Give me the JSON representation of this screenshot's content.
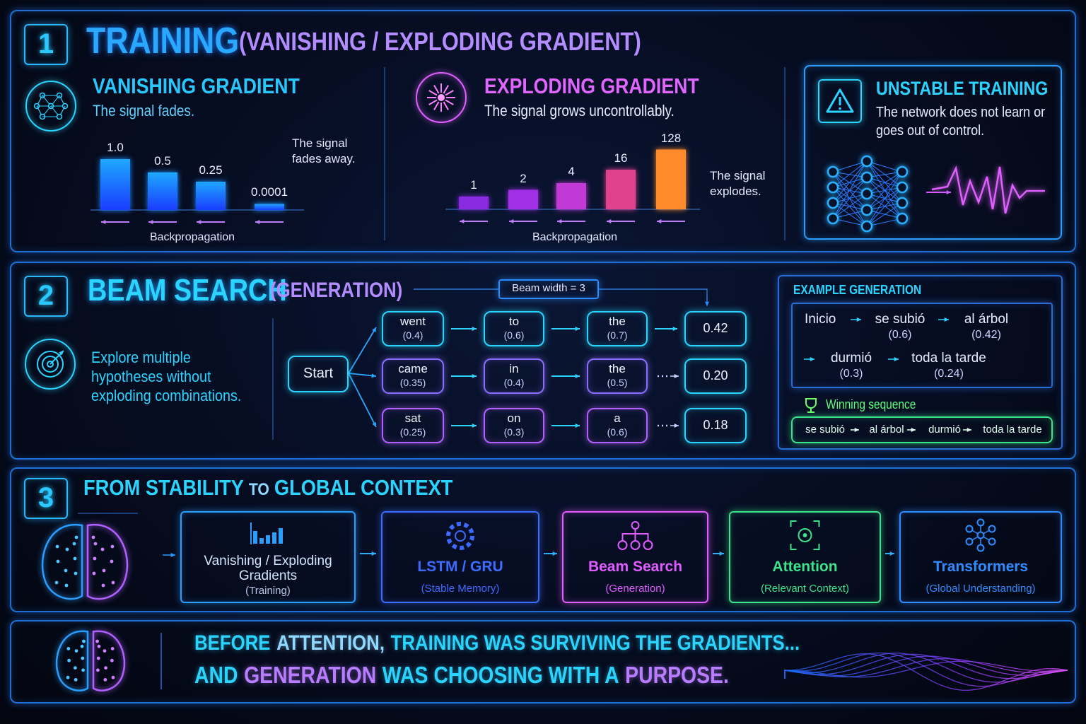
{
  "section1": {
    "number": "1",
    "title": "TRAINING",
    "subtitle": "(VANISHING / EXPLODING GRADIENT)",
    "vanishing": {
      "title": "VANISHING GRADIENT",
      "subtitle": "The signal fades.",
      "note": "The signal fades away.",
      "axis_label": "Backpropagation",
      "chart": {
        "type": "bar",
        "scale": "sqrt",
        "color": "#1e8fff",
        "values": [
          1,
          0.5,
          0.25,
          0.0001
        ],
        "value_labels": [
          "1.0",
          "0.5",
          "0.25",
          "0.0001"
        ]
      }
    },
    "exploding": {
      "title": "EXPLODING GRADIENT",
      "subtitle": "The signal grows uncontrollably.",
      "note": "The signal explodes.",
      "axis_label": "Backpropagation",
      "chart": {
        "type": "bar",
        "scale": "log2",
        "colors": [
          "#8a2be2",
          "#a12fe6",
          "#c13ad8",
          "#e0428f",
          "#ff8a2a"
        ],
        "values": [
          1,
          2,
          4,
          16,
          128
        ]
      }
    },
    "unstable": {
      "title": "UNSTABLE TRAINING",
      "text": "The network does not learn or goes out of control."
    }
  },
  "section2": {
    "number": "2",
    "title": "BEAM SEARCH",
    "subtitle": "(GENERATION)",
    "beam_width": "Beam width = 3",
    "description": "Explore multiple hypotheses without exploding combinations.",
    "start": "Start",
    "paths": [
      {
        "tokens": [
          {
            "word": "went",
            "prob": "(0.4)"
          },
          {
            "word": "to",
            "prob": "(0.6)"
          },
          {
            "word": "the",
            "prob": "(0.7)"
          }
        ],
        "score": "0.42"
      },
      {
        "tokens": [
          {
            "word": "came",
            "prob": "(0.35)"
          },
          {
            "word": "in",
            "prob": "(0.4)"
          },
          {
            "word": "the",
            "prob": "(0.5)"
          }
        ],
        "score": "0.20"
      },
      {
        "tokens": [
          {
            "word": "sat",
            "prob": "(0.25)"
          },
          {
            "word": "on",
            "prob": "(0.3)"
          },
          {
            "word": "a",
            "prob": "(0.6)"
          }
        ],
        "score": "0.18"
      }
    ],
    "example": {
      "title": "EXAMPLE GENERATION",
      "start": "Inicio",
      "steps": [
        {
          "word": "se subió",
          "prob": "(0.6)"
        },
        {
          "word": "al árbol",
          "prob": "(0.42)"
        },
        {
          "word": "durmió",
          "prob": "(0.3)"
        },
        {
          "word": "toda la tarde",
          "prob": "(0.24)"
        }
      ],
      "winning_label": "Winning sequence",
      "winning": [
        "se subió",
        "al árbol",
        "durmió",
        "toda la tarde"
      ]
    }
  },
  "section3": {
    "number": "3",
    "title": [
      "FROM STABILITY",
      "TO",
      "GLOBAL CONTEXT"
    ],
    "cards": [
      {
        "title": "Vanishing / Exploding Gradients",
        "subtitle": "(Training)",
        "color": "#2a9dff"
      },
      {
        "title": "LSTM / GRU",
        "subtitle": "(Stable Memory)",
        "color": "#3d6bff"
      },
      {
        "title": "Beam Search",
        "subtitle": "(Generation)",
        "color": "#e05cff"
      },
      {
        "title": "Attention",
        "subtitle": "(Relevant Context)",
        "color": "#3be38a"
      },
      {
        "title": "Transformers",
        "subtitle": "(Global Understanding)",
        "color": "#2f8cff"
      }
    ]
  },
  "section4": {
    "lines": [
      [
        {
          "text": "BEFORE",
          "color": "#2ad4ff"
        },
        {
          "text": "ATTENTION,",
          "color": "#8fd8ff"
        },
        {
          "text": "TRAINING WAS SURVIVING THE GRADIENTS...",
          "color": "#2ad4ff"
        }
      ],
      [
        {
          "text": "AND",
          "color": "#2ad4ff"
        },
        {
          "text": "GENERATION",
          "color": "#b77cff"
        },
        {
          "text": "WAS CHOOSING WITH A",
          "color": "#2ad4ff"
        },
        {
          "text": "PURPOSE.",
          "color": "#b77cff"
        }
      ]
    ]
  }
}
